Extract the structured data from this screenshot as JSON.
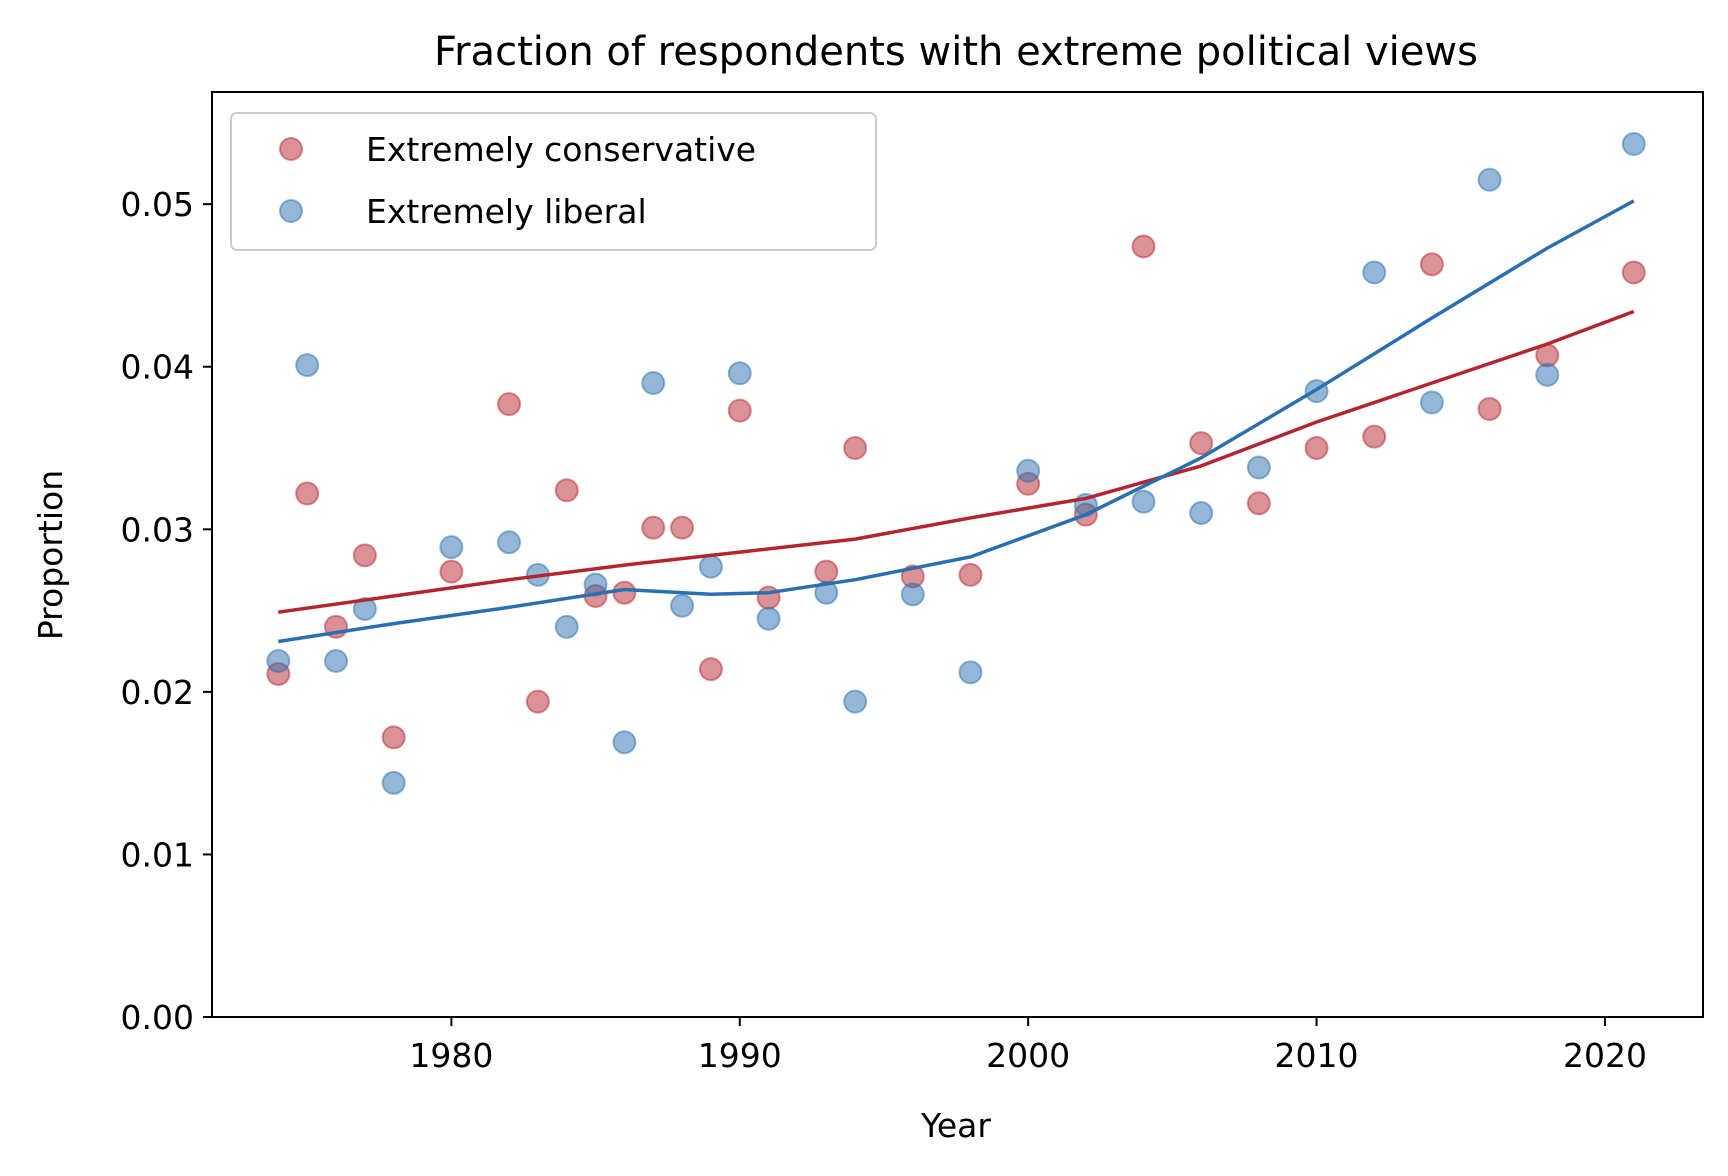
{
  "chart_data": {
    "type": "scatter",
    "title": "Fraction of respondents with extreme political views",
    "xlabel": "Year",
    "ylabel": "Proportion",
    "xlim": [
      1971.7,
      1923.4
    ],
    "ylim": [
      0,
      0.0569
    ],
    "xticks": [
      1980,
      1990,
      2000,
      2010,
      2020
    ],
    "yticks": [
      0.0,
      0.01,
      0.02,
      0.03,
      0.04,
      0.05
    ],
    "ytick_labels": [
      "0.00",
      "0.01",
      "0.02",
      "0.03",
      "0.04",
      "0.05"
    ],
    "grid": false,
    "legend": {
      "location": "upper left",
      "entries": [
        "Extremely conservative",
        "Extremely liberal"
      ]
    },
    "series": [
      {
        "name": "Extremely conservative",
        "color": "#b5252f",
        "points": [
          [
            1974,
            0.0211
          ],
          [
            1975,
            0.0322
          ],
          [
            1976,
            0.024
          ],
          [
            1977,
            0.0284
          ],
          [
            1978,
            0.0172
          ],
          [
            1980,
            0.0274
          ],
          [
            1982,
            0.0377
          ],
          [
            1983,
            0.0194
          ],
          [
            1984,
            0.0324
          ],
          [
            1985,
            0.0259
          ],
          [
            1986,
            0.0261
          ],
          [
            1987,
            0.0301
          ],
          [
            1988,
            0.0301
          ],
          [
            1989,
            0.0214
          ],
          [
            1990,
            0.0373
          ],
          [
            1991,
            0.0258
          ],
          [
            1993,
            0.0274
          ],
          [
            1994,
            0.035
          ],
          [
            1996,
            0.0271
          ],
          [
            1998,
            0.0272
          ],
          [
            2000,
            0.0328
          ],
          [
            2002,
            0.0309
          ],
          [
            2004,
            0.0474
          ],
          [
            2006,
            0.0353
          ],
          [
            2008,
            0.0316
          ],
          [
            2010,
            0.035
          ],
          [
            2012,
            0.0357
          ],
          [
            2014,
            0.0463
          ],
          [
            2016,
            0.0374
          ],
          [
            2018,
            0.0407
          ],
          [
            2021,
            0.0458
          ]
        ],
        "trend": [
          [
            1974,
            0.0249
          ],
          [
            1978,
            0.0259
          ],
          [
            1982,
            0.0269
          ],
          [
            1986,
            0.0278
          ],
          [
            1990,
            0.0286
          ],
          [
            1994,
            0.0294
          ],
          [
            1998,
            0.0307
          ],
          [
            2002,
            0.0319
          ],
          [
            2006,
            0.0339
          ],
          [
            2010,
            0.0366
          ],
          [
            2014,
            0.039
          ],
          [
            2018,
            0.0414
          ],
          [
            2021,
            0.0434
          ]
        ]
      },
      {
        "name": "Extremely liberal",
        "color": "#2a6fb0",
        "points": [
          [
            1974,
            0.0219
          ],
          [
            1975,
            0.0401
          ],
          [
            1976,
            0.0219
          ],
          [
            1977,
            0.0251
          ],
          [
            1978,
            0.0144
          ],
          [
            1980,
            0.0289
          ],
          [
            1982,
            0.0292
          ],
          [
            1983,
            0.0272
          ],
          [
            1984,
            0.024
          ],
          [
            1985,
            0.0266
          ],
          [
            1986,
            0.0169
          ],
          [
            1987,
            0.039
          ],
          [
            1988,
            0.0253
          ],
          [
            1989,
            0.0277
          ],
          [
            1990,
            0.0396
          ],
          [
            1991,
            0.0245
          ],
          [
            1993,
            0.0261
          ],
          [
            1994,
            0.0194
          ],
          [
            1996,
            0.026
          ],
          [
            1998,
            0.0212
          ],
          [
            2000,
            0.0336
          ],
          [
            2002,
            0.0315
          ],
          [
            2004,
            0.0317
          ],
          [
            2006,
            0.031
          ],
          [
            2008,
            0.0338
          ],
          [
            2010,
            0.0385
          ],
          [
            2012,
            0.0458
          ],
          [
            2014,
            0.0378
          ],
          [
            2016,
            0.0515
          ],
          [
            2018,
            0.0395
          ],
          [
            2021,
            0.0537
          ]
        ],
        "trend": [
          [
            1974,
            0.0231
          ],
          [
            1978,
            0.0242
          ],
          [
            1982,
            0.0252
          ],
          [
            1986,
            0.0263
          ],
          [
            1989,
            0.026
          ],
          [
            1991,
            0.0261
          ],
          [
            1994,
            0.0269
          ],
          [
            1998,
            0.0283
          ],
          [
            2002,
            0.0309
          ],
          [
            2006,
            0.0344
          ],
          [
            2010,
            0.0386
          ],
          [
            2014,
            0.043
          ],
          [
            2018,
            0.0473
          ],
          [
            2021,
            0.0502
          ]
        ]
      }
    ]
  }
}
